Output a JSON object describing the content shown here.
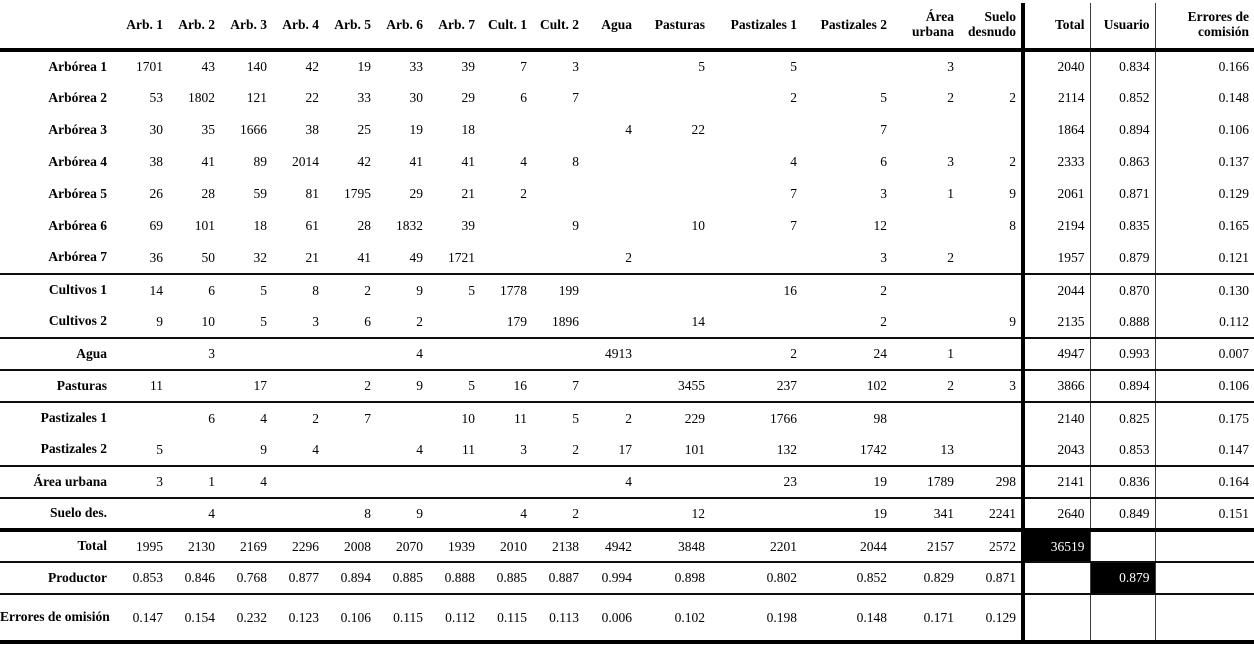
{
  "colors": {
    "text": "#000000",
    "rule": "#000000",
    "highlight_bg": "#000000",
    "highlight_text": "#ffffff"
  },
  "table": {
    "corner_header": "",
    "column_headers": [
      "Arb. 1",
      "Arb. 2",
      "Arb. 3",
      "Arb. 4",
      "Arb. 5",
      "Arb. 6",
      "Arb. 7",
      "Cult. 1",
      "Cult. 2",
      "Agua",
      "Pasturas",
      "Pastizales 1",
      "Pastizales 2",
      "Área urbana",
      "Suelo desnudo",
      "Total",
      "Usuario",
      "Errores de comisión"
    ],
    "black_cells": [
      [
        15,
        15
      ],
      [
        16,
        16
      ]
    ],
    "rows": [
      {
        "label": "Arbórea 1",
        "rule": "none",
        "cells": [
          "1701",
          "43",
          "140",
          "42",
          "19",
          "33",
          "39",
          "7",
          "3",
          "",
          "5",
          "5",
          "",
          "3",
          "",
          "2040",
          "0.834",
          "0.166"
        ]
      },
      {
        "label": "Arbórea 2",
        "rule": "none",
        "cells": [
          "53",
          "1802",
          "121",
          "22",
          "33",
          "30",
          "29",
          "6",
          "7",
          "",
          "",
          "2",
          "5",
          "2",
          "2",
          "2114",
          "0.852",
          "0.148"
        ]
      },
      {
        "label": "Arbórea 3",
        "rule": "none",
        "cells": [
          "30",
          "35",
          "1666",
          "38",
          "25",
          "19",
          "18",
          "",
          "",
          "4",
          "22",
          "",
          "7",
          "",
          "",
          "1864",
          "0.894",
          "0.106"
        ]
      },
      {
        "label": "Arbórea 4",
        "rule": "none",
        "cells": [
          "38",
          "41",
          "89",
          "2014",
          "42",
          "41",
          "41",
          "4",
          "8",
          "",
          "",
          "4",
          "6",
          "3",
          "2",
          "2333",
          "0.863",
          "0.137"
        ]
      },
      {
        "label": "Arbórea 5",
        "rule": "none",
        "cells": [
          "26",
          "28",
          "59",
          "81",
          "1795",
          "29",
          "21",
          "2",
          "",
          "",
          "",
          "7",
          "3",
          "1",
          "9",
          "2061",
          "0.871",
          "0.129"
        ]
      },
      {
        "label": "Arbórea 6",
        "rule": "none",
        "cells": [
          "69",
          "101",
          "18",
          "61",
          "28",
          "1832",
          "39",
          "",
          "9",
          "",
          "10",
          "7",
          "12",
          "",
          "8",
          "2194",
          "0.835",
          "0.165"
        ]
      },
      {
        "label": "Arbórea 7",
        "rule": "none",
        "cells": [
          "36",
          "50",
          "32",
          "21",
          "41",
          "49",
          "1721",
          "",
          "",
          "2",
          "",
          "",
          "3",
          "2",
          "",
          "1957",
          "0.879",
          "0.121"
        ]
      },
      {
        "label": "Cultivos 1",
        "rule": "medium",
        "cells": [
          "14",
          "6",
          "5",
          "8",
          "2",
          "9",
          "5",
          "1778",
          "199",
          "",
          "",
          "16",
          "2",
          "",
          "",
          "2044",
          "0.870",
          "0.130"
        ]
      },
      {
        "label": "Cultivos 2",
        "rule": "none",
        "cells": [
          "9",
          "10",
          "5",
          "3",
          "6",
          "2",
          "",
          "179",
          "1896",
          "",
          "14",
          "",
          "2",
          "",
          "9",
          "2135",
          "0.888",
          "0.112"
        ]
      },
      {
        "label": "Agua",
        "rule": "medium",
        "cells": [
          "",
          "3",
          "",
          "",
          "",
          "4",
          "",
          "",
          "",
          "4913",
          "",
          "2",
          "24",
          "1",
          "",
          "4947",
          "0.993",
          "0.007"
        ]
      },
      {
        "label": "Pasturas",
        "rule": "medium",
        "cells": [
          "11",
          "",
          "17",
          "",
          "2",
          "9",
          "5",
          "16",
          "7",
          "",
          "3455",
          "237",
          "102",
          "2",
          "3",
          "3866",
          "0.894",
          "0.106"
        ]
      },
      {
        "label": "Pastizales 1",
        "rule": "medium",
        "cells": [
          "",
          "6",
          "4",
          "2",
          "7",
          "",
          "10",
          "11",
          "5",
          "2",
          "229",
          "1766",
          "98",
          "",
          "",
          "2140",
          "0.825",
          "0.175"
        ]
      },
      {
        "label": "Pastizales 2",
        "rule": "none",
        "cells": [
          "5",
          "",
          "9",
          "4",
          "",
          "4",
          "11",
          "3",
          "2",
          "17",
          "101",
          "132",
          "1742",
          "13",
          "",
          "2043",
          "0.853",
          "0.147"
        ]
      },
      {
        "label": "Área urbana",
        "rule": "medium",
        "cells": [
          "3",
          "1",
          "4",
          "",
          "",
          "",
          "",
          "",
          "",
          "4",
          "",
          "23",
          "19",
          "1789",
          "298",
          "2141",
          "0.836",
          "0.164"
        ]
      },
      {
        "label": "Suelo des.",
        "rule": "medium",
        "cells": [
          "",
          "4",
          "",
          "",
          "8",
          "9",
          "",
          "4",
          "2",
          "",
          "12",
          "",
          "19",
          "341",
          "2241",
          "2640",
          "0.849",
          "0.151"
        ]
      },
      {
        "label": "Total",
        "rule": "thick",
        "cells": [
          "1995",
          "2130",
          "2169",
          "2296",
          "2008",
          "2070",
          "1939",
          "2010",
          "2138",
          "4942",
          "3848",
          "2201",
          "2044",
          "2157",
          "2572",
          "36519",
          "",
          ""
        ]
      },
      {
        "label": "Productor",
        "rule": "medium",
        "cells": [
          "0.853",
          "0.846",
          "0.768",
          "0.877",
          "0.894",
          "0.885",
          "0.888",
          "0.885",
          "0.887",
          "0.994",
          "0.898",
          "0.802",
          "0.852",
          "0.829",
          "0.871",
          "",
          "0.879",
          ""
        ]
      },
      {
        "label": "Errores de omisión",
        "rule": "medium",
        "tall": true,
        "cells": [
          "0.147",
          "0.154",
          "0.232",
          "0.123",
          "0.106",
          "0.115",
          "0.112",
          "0.115",
          "0.113",
          "0.006",
          "0.102",
          "0.198",
          "0.148",
          "0.171",
          "0.129",
          "",
          "",
          ""
        ]
      }
    ]
  }
}
